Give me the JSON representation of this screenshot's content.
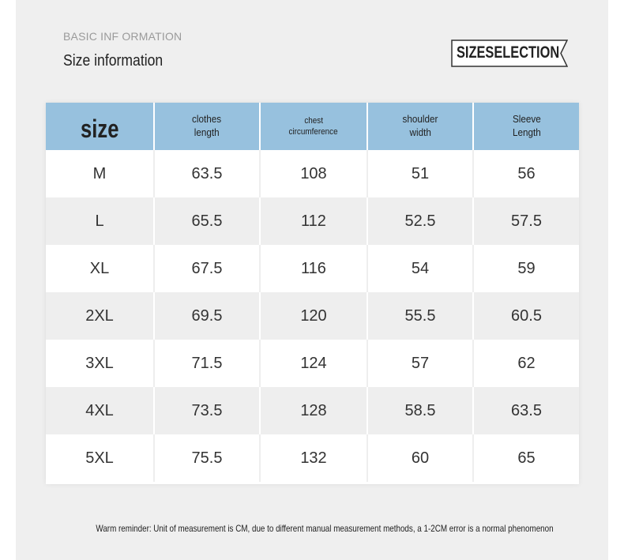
{
  "header": {
    "kicker": "BASIC INF ORMATION",
    "title": "Size information",
    "badge": "SIZESELECTION"
  },
  "table": {
    "columns": [
      [
        "size"
      ],
      [
        "clothes",
        "length"
      ],
      [
        "chest",
        "circumference"
      ],
      [
        "shoulder",
        "width"
      ],
      [
        "Sleeve",
        "Length"
      ]
    ],
    "rows": [
      [
        "M",
        "63.5",
        "108",
        "51",
        "56"
      ],
      [
        "L",
        "65.5",
        "112",
        "52.5",
        "57.5"
      ],
      [
        "XL",
        "67.5",
        "116",
        "54",
        "59"
      ],
      [
        "2XL",
        "69.5",
        "120",
        "55.5",
        "60.5"
      ],
      [
        "3XL",
        "71.5",
        "124",
        "57",
        "62"
      ],
      [
        "4XL",
        "73.5",
        "128",
        "58.5",
        "63.5"
      ],
      [
        "5XL",
        "75.5",
        "132",
        "60",
        "65"
      ]
    ]
  },
  "footer": {
    "note": "Warm reminder: Unit of measurement is CM, due to different manual measurement methods, a 1-2CM error is a normal phenomenon"
  }
}
